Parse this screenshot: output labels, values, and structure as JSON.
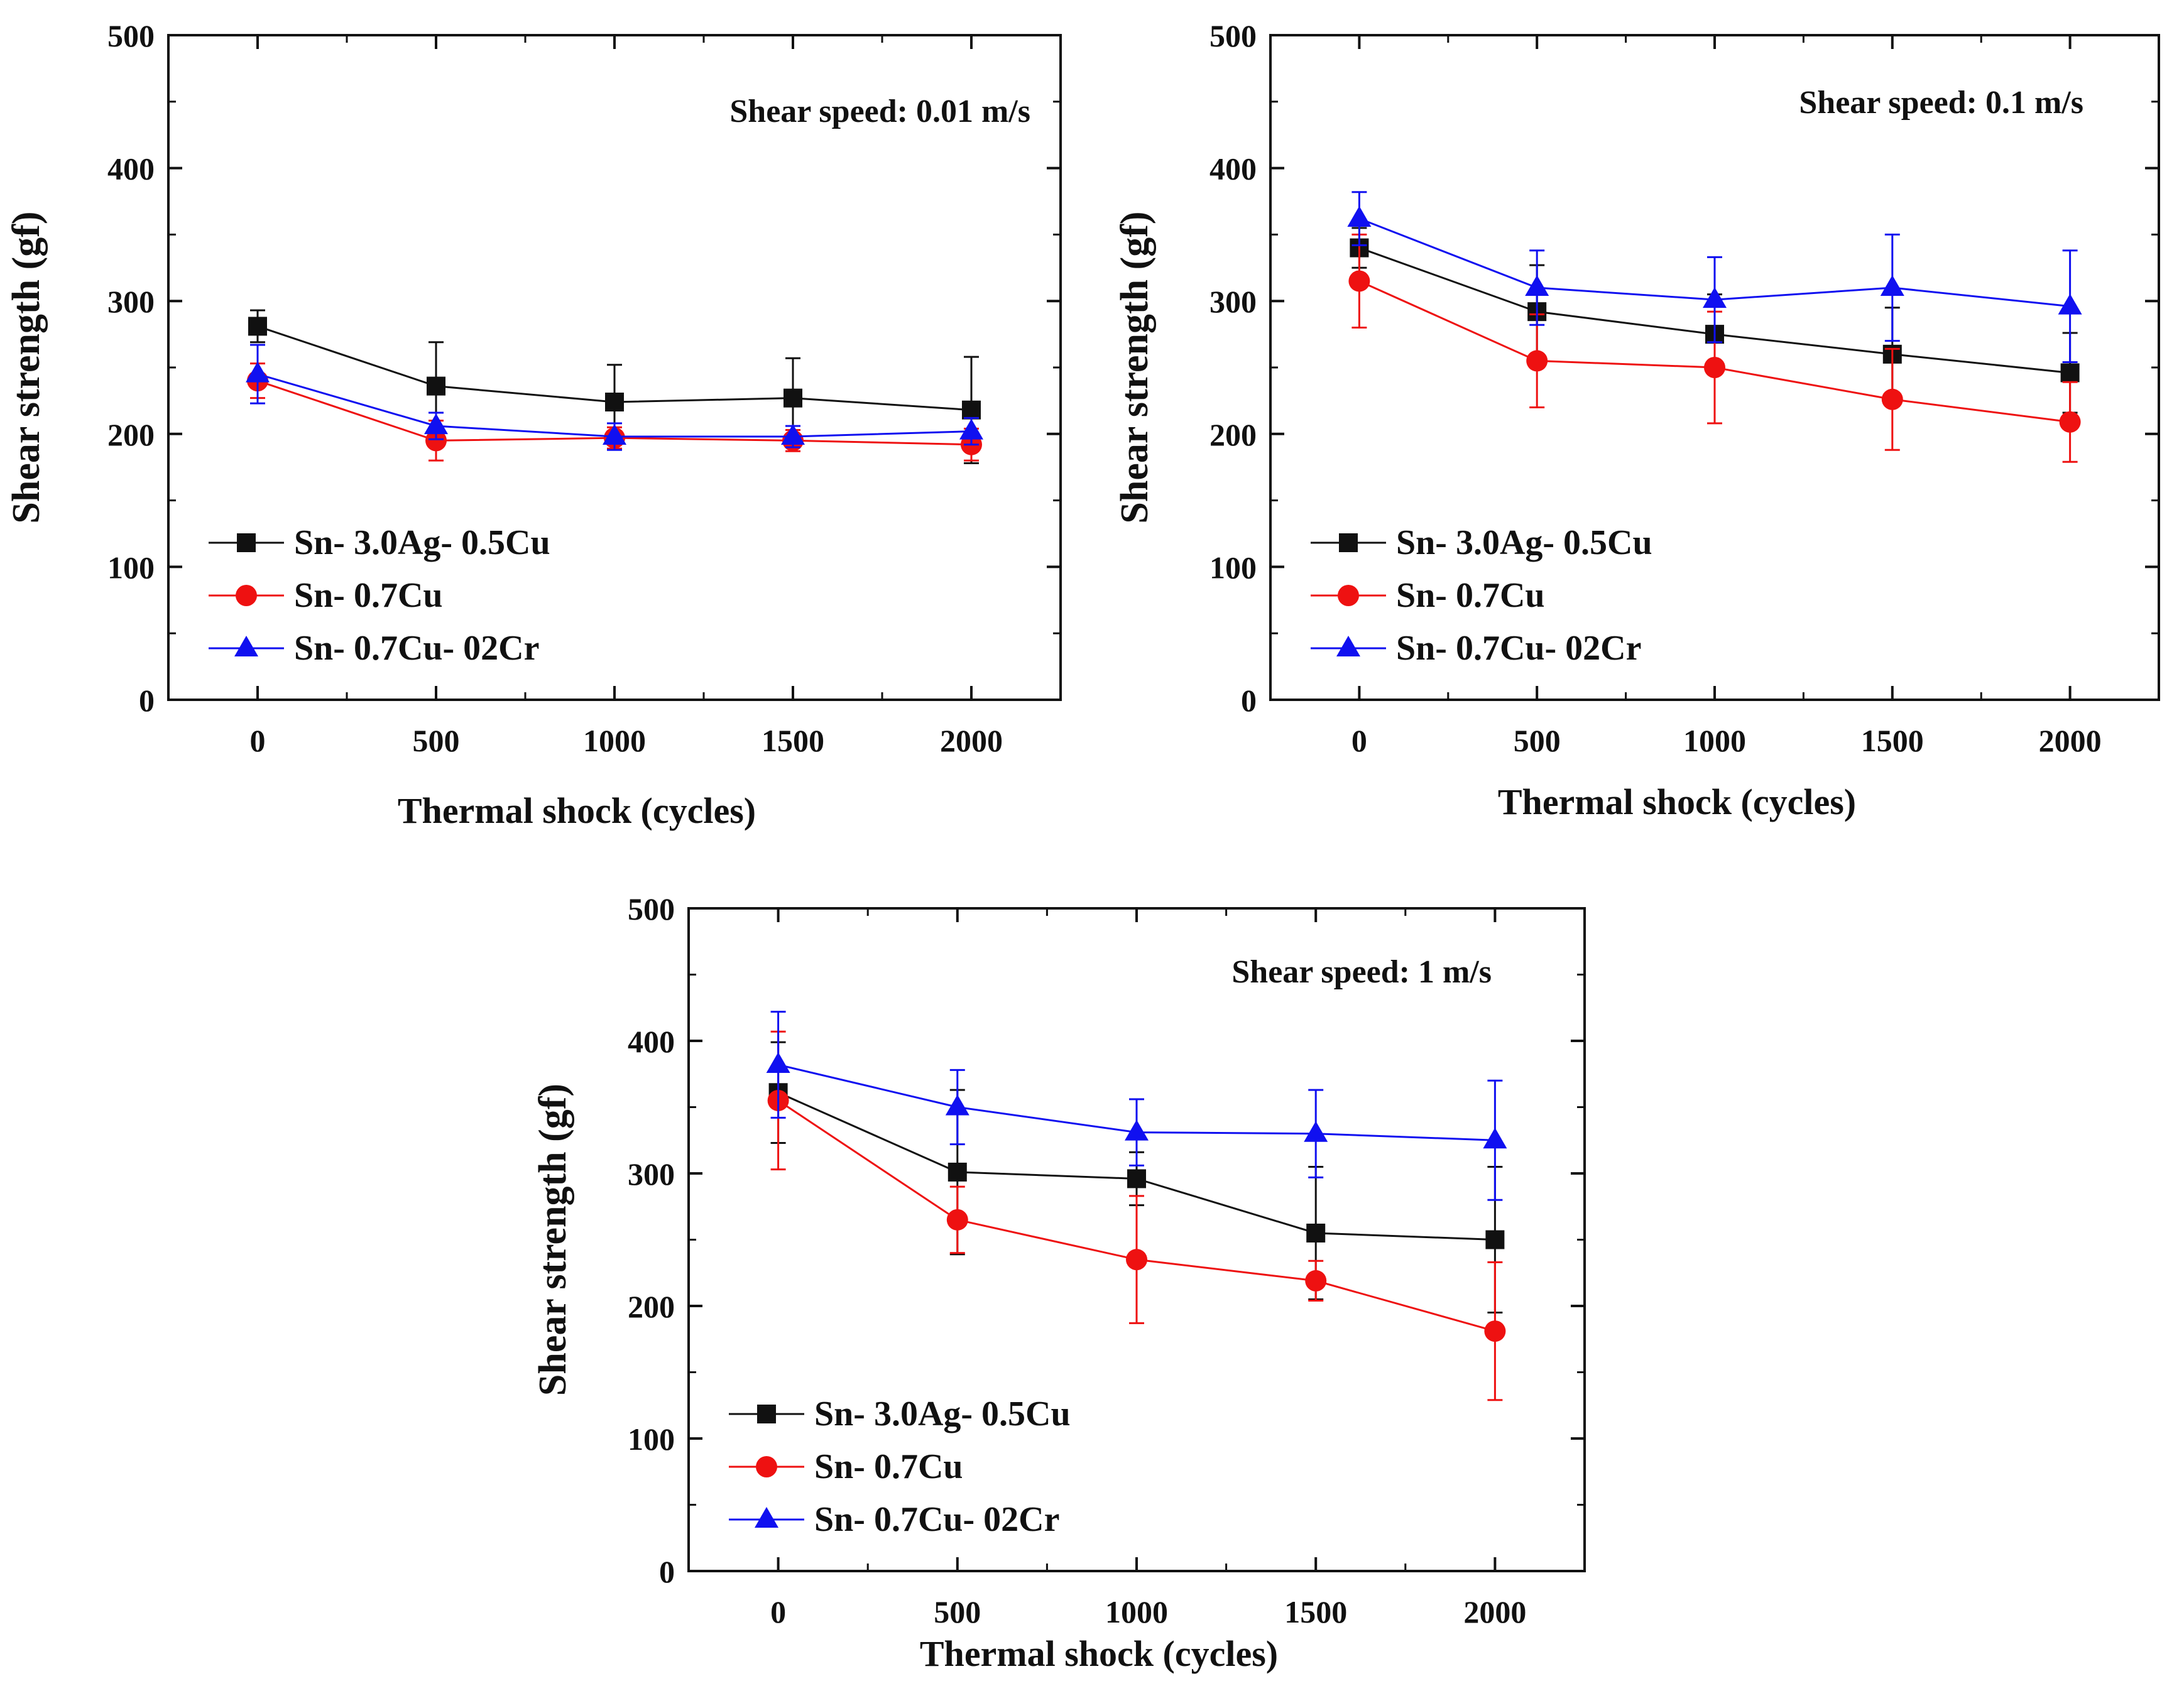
{
  "figure": {
    "legend_labels": [
      "Sn- 3.0Ag- 0.5Cu",
      "Sn- 0.7Cu",
      "Sn- 0.7Cu- 02Cr"
    ],
    "colors": {
      "series_0": "#111111",
      "series_1": "#ee1111",
      "series_2": "#1010f0",
      "axis": "#111111"
    },
    "markers": [
      "square",
      "circle",
      "triangle"
    ]
  },
  "chart_data": [
    {
      "type": "line",
      "title": "Shear speed: 0.01 m/s",
      "xlabel": "Thermal shock (cycles)",
      "ylabel": "Shear strength (gf)",
      "x": [
        0,
        500,
        1000,
        1500,
        2000
      ],
      "xticks": [
        "0",
        "500",
        "1000",
        "1500",
        "2000"
      ],
      "yticks": [
        "0",
        "100",
        "200",
        "300",
        "400",
        "500"
      ],
      "xlim": [
        -250,
        2250
      ],
      "ylim": [
        0,
        500
      ],
      "legend_position": "lower-left",
      "series": [
        {
          "name": "Sn- 3.0Ag- 0.5Cu",
          "values": [
            281,
            236,
            224,
            227,
            218
          ],
          "error": [
            12,
            33,
            28,
            30,
            40
          ]
        },
        {
          "name": "Sn- 0.7Cu",
          "values": [
            240,
            195,
            197,
            195,
            192
          ],
          "error": [
            13,
            15,
            8,
            8,
            12
          ]
        },
        {
          "name": "Sn- 0.7Cu- 02Cr",
          "values": [
            245,
            206,
            198,
            198,
            202
          ],
          "error": [
            22,
            10,
            10,
            8,
            10
          ]
        }
      ]
    },
    {
      "type": "line",
      "title": "Shear speed: 0.1 m/s",
      "xlabel": "Thermal shock (cycles)",
      "ylabel": "Shear strength (gf)",
      "x": [
        0,
        500,
        1000,
        1500,
        2000
      ],
      "xticks": [
        "0",
        "500",
        "1000",
        "1500",
        "2000"
      ],
      "yticks": [
        "0",
        "100",
        "200",
        "300",
        "400",
        "500"
      ],
      "xlim": [
        -250,
        2250
      ],
      "ylim": [
        0,
        500
      ],
      "legend_position": "lower-left",
      "series": [
        {
          "name": "Sn- 3.0Ag- 0.5Cu",
          "values": [
            340,
            292,
            275,
            260,
            246
          ],
          "error": [
            15,
            35,
            30,
            35,
            30
          ]
        },
        {
          "name": "Sn- 0.7Cu",
          "values": [
            315,
            255,
            250,
            226,
            209
          ],
          "error": [
            35,
            35,
            42,
            38,
            30
          ]
        },
        {
          "name": "Sn- 0.7Cu- 02Cr",
          "values": [
            362,
            310,
            301,
            310,
            296
          ],
          "error": [
            20,
            28,
            32,
            40,
            42
          ]
        }
      ]
    },
    {
      "type": "line",
      "title": "Shear speed: 1 m/s",
      "xlabel": "Thermal shock (cycles)",
      "ylabel": "Shear strength (gf)",
      "x": [
        0,
        500,
        1000,
        1500,
        2000
      ],
      "xticks": [
        "0",
        "500",
        "1000",
        "1500",
        "2000"
      ],
      "yticks": [
        "0",
        "100",
        "200",
        "300",
        "400",
        "500"
      ],
      "xlim": [
        -250,
        2250
      ],
      "ylim": [
        0,
        500
      ],
      "legend_position": "lower-left",
      "series": [
        {
          "name": "Sn- 3.0Ag- 0.5Cu",
          "values": [
            361,
            301,
            296,
            255,
            250
          ],
          "error": [
            38,
            62,
            20,
            50,
            55
          ]
        },
        {
          "name": "Sn- 0.7Cu",
          "values": [
            355,
            265,
            235,
            219,
            181
          ],
          "error": [
            52,
            25,
            48,
            15,
            52
          ]
        },
        {
          "name": "Sn- 0.7Cu- 02Cr",
          "values": [
            382,
            350,
            331,
            330,
            325
          ],
          "error": [
            40,
            28,
            25,
            33,
            45
          ]
        }
      ]
    }
  ]
}
